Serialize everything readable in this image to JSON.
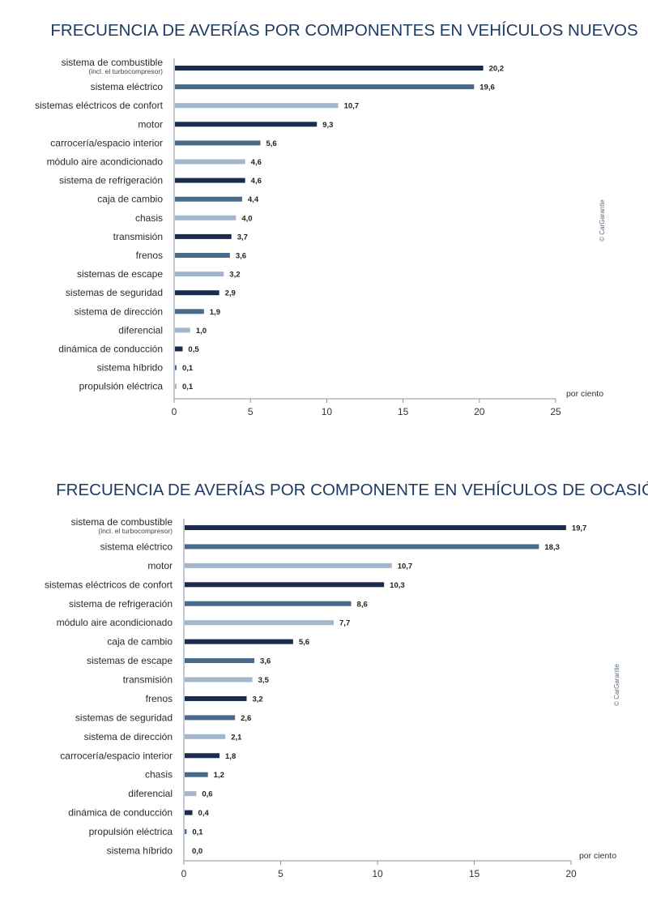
{
  "colors": {
    "dark": "#1a2c4c",
    "mid": "#4a6a8c",
    "light": "#a4b6c9",
    "title": "#1f3b63"
  },
  "chart_data": [
    {
      "type": "bar",
      "orientation": "horizontal",
      "title": "FRECUENCIA DE AVERÍAS POR COMPONENTES EN VEHÍCULOS NUEVOS",
      "xlabel": "por ciento",
      "credit": "© CarGarantie",
      "xlim": [
        0,
        25
      ],
      "xticks": [
        "0",
        "5",
        "10",
        "15",
        "20",
        "25"
      ],
      "categories": [
        "sistema de combustible",
        "sistema eléctrico",
        "sistemas eléctricos de confort",
        "motor",
        "carrocería/espacio interior",
        "módulo aire acondicionado",
        "sistema de refrigeración",
        "caja de cambio",
        "chasis",
        "transmisión",
        "frenos",
        "sistemas de escape",
        "sistemas de seguridad",
        "sistema de dirección",
        "diferencial",
        "dinámica de conducción",
        "sistema híbrido",
        "propulsión eléctrica"
      ],
      "category_notes": [
        "(incl. el turbocompresor)",
        "",
        "",
        "",
        "",
        "",
        "",
        "",
        "",
        "",
        "",
        "",
        "",
        "",
        "",
        "",
        "",
        ""
      ],
      "values": [
        20.2,
        19.6,
        10.7,
        9.3,
        5.6,
        4.6,
        4.6,
        4.4,
        4.0,
        3.7,
        3.6,
        3.2,
        2.9,
        1.9,
        1.0,
        0.5,
        0.1,
        0.1
      ],
      "value_labels": [
        "20,2",
        "19,6",
        "10,7",
        "9,3",
        "5,6",
        "4,6",
        "4,6",
        "4,4",
        "4,0",
        "3,7",
        "3,6",
        "3,2",
        "2,9",
        "1,9",
        "1,0",
        "0,5",
        "0,1",
        "0,1"
      ],
      "shades": [
        "dark",
        "mid",
        "light",
        "dark",
        "mid",
        "light",
        "dark",
        "mid",
        "light",
        "dark",
        "mid",
        "light",
        "dark",
        "mid",
        "light",
        "dark",
        "mid",
        "light"
      ]
    },
    {
      "type": "bar",
      "orientation": "horizontal",
      "title": "FRECUENCIA DE AVERÍAS POR COMPONENTE EN VEHÍCULOS DE OCASIÓN",
      "xlabel": "por ciento",
      "credit": "© CarGarantie",
      "xlim": [
        0,
        20
      ],
      "xticks": [
        "0",
        "5",
        "10",
        "15",
        "20"
      ],
      "categories": [
        "sistema de combustible",
        "sistema eléctrico",
        "motor",
        "sistemas eléctricos de confort",
        "sistema de refrigeración",
        "módulo aire acondicionado",
        "caja de cambio",
        "sistemas de escape",
        "transmisión",
        "frenos",
        "sistemas de seguridad",
        "sistema de dirección",
        "carrocería/espacio interior",
        "chasis",
        "diferencial",
        "dinámica de conducción",
        "propulsión eléctrica",
        "sistema híbrido"
      ],
      "category_notes": [
        "(incl. el turbocompresor)",
        "",
        "",
        "",
        "",
        "",
        "",
        "",
        "",
        "",
        "",
        "",
        "",
        "",
        "",
        "",
        "",
        ""
      ],
      "values": [
        19.7,
        18.3,
        10.7,
        10.3,
        8.6,
        7.7,
        5.6,
        3.6,
        3.5,
        3.2,
        2.6,
        2.1,
        1.8,
        1.2,
        0.6,
        0.4,
        0.1,
        0.0
      ],
      "value_labels": [
        "19,7",
        "18,3",
        "10,7",
        "10,3",
        "8,6",
        "7,7",
        "5,6",
        "3,6",
        "3,5",
        "3,2",
        "2,6",
        "2,1",
        "1,8",
        "1,2",
        "0,6",
        "0,4",
        "0,1",
        "0,0"
      ],
      "shades": [
        "dark",
        "mid",
        "light",
        "dark",
        "mid",
        "light",
        "dark",
        "mid",
        "light",
        "dark",
        "mid",
        "light",
        "dark",
        "mid",
        "light",
        "dark",
        "mid",
        "light"
      ]
    }
  ]
}
